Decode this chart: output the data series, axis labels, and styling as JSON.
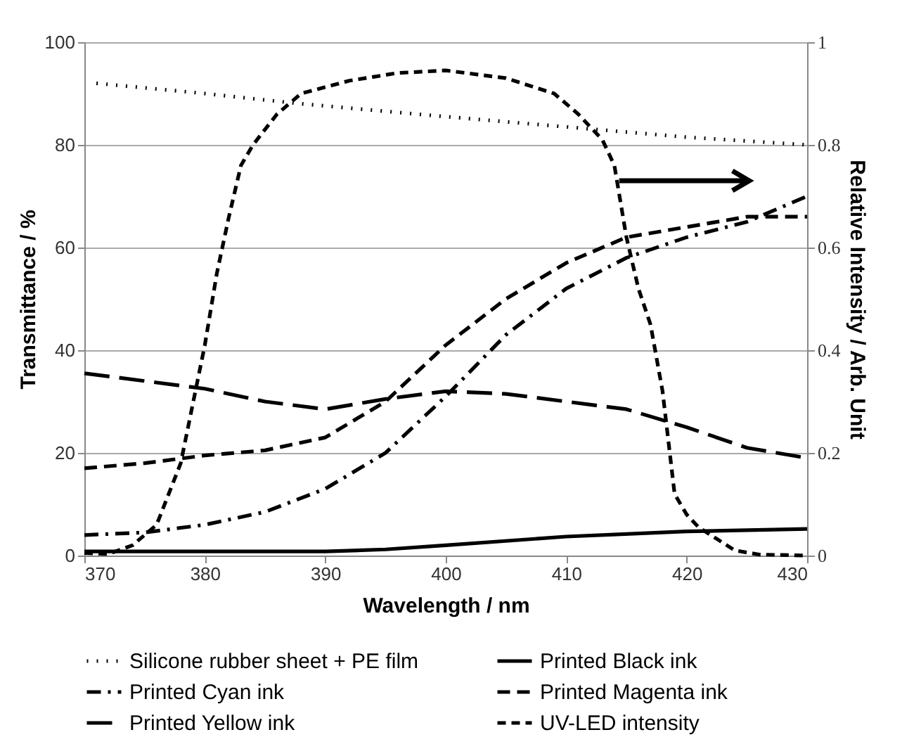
{
  "chart_data": {
    "type": "line",
    "xlabel": "Wavelength / nm",
    "ylabel": "Transmittance / %",
    "y2label": "Relative Intensity / Arb. Unit",
    "xlim": [
      370,
      430
    ],
    "xticks": [
      370,
      380,
      390,
      400,
      410,
      420,
      430
    ],
    "ylim": [
      0,
      100
    ],
    "yticks": [
      0,
      20,
      40,
      60,
      80,
      100
    ],
    "y2lim": [
      0,
      1
    ],
    "y2ticks": [
      0,
      0.2,
      0.4,
      0.6,
      0.8,
      1
    ],
    "grid": "y",
    "legend": "bottom",
    "series": [
      {
        "name": "Silicone rubber sheet + PE film",
        "color": "#000000",
        "line_style": "dotted",
        "x": [
          371,
          380,
          388,
          400,
          410,
          420,
          430
        ],
        "values": [
          92,
          90,
          88,
          85.5,
          83.5,
          81.5,
          80
        ]
      },
      {
        "name": "Printed Black ink",
        "color": "#000000",
        "line_style": "solid",
        "x": [
          370,
          390,
          395,
          400,
          410,
          420,
          430
        ],
        "values": [
          0.8,
          0.8,
          1.2,
          2,
          3.7,
          4.7,
          5.2
        ]
      },
      {
        "name": "Printed Cyan ink",
        "color": "#000000",
        "line_style": "dashed",
        "x": [
          370,
          375,
          380,
          385,
          390,
          395,
          400,
          405,
          410,
          415,
          420,
          425,
          430
        ],
        "values": [
          4,
          4.5,
          6,
          8.5,
          13,
          20,
          31,
          43,
          52,
          58,
          62,
          65,
          70
        ]
      },
      {
        "name": "Printed Magenta ink",
        "color": "#000000",
        "line_style": "dashed",
        "x": [
          370,
          375,
          380,
          385,
          390,
          395,
          400,
          405,
          410,
          415,
          420,
          425,
          430
        ],
        "values": [
          17,
          18,
          19.5,
          20.5,
          23,
          30,
          41,
          50,
          57,
          62,
          64,
          66,
          66
        ]
      },
      {
        "name": "Printed Yellow ink",
        "color": "#000000",
        "line_style": "dashed",
        "x": [
          370,
          375,
          380,
          385,
          390,
          395,
          400,
          405,
          410,
          415,
          420,
          425,
          430
        ],
        "values": [
          35.5,
          34,
          32.5,
          30,
          28.5,
          30.5,
          32,
          31.5,
          30,
          28.5,
          25,
          21,
          19
        ]
      },
      {
        "name": "UV-LED intensity",
        "color": "#000000",
        "line_style": "dashed",
        "axis": "y2",
        "x": [
          370,
          372,
          374,
          376,
          378,
          380,
          381,
          382,
          383,
          384,
          386,
          388,
          392,
          396,
          400,
          405,
          409,
          411,
          413,
          414,
          415,
          416,
          417,
          418,
          419,
          420,
          421,
          422,
          424,
          426,
          430
        ],
        "values": [
          0.005,
          0.003,
          0.02,
          0.06,
          0.18,
          0.41,
          0.55,
          0.66,
          0.76,
          0.8,
          0.86,
          0.9,
          0.925,
          0.94,
          0.945,
          0.93,
          0.9,
          0.86,
          0.81,
          0.76,
          0.62,
          0.52,
          0.45,
          0.32,
          0.12,
          0.08,
          0.055,
          0.04,
          0.01,
          0.002,
          0
        ]
      }
    ]
  }
}
